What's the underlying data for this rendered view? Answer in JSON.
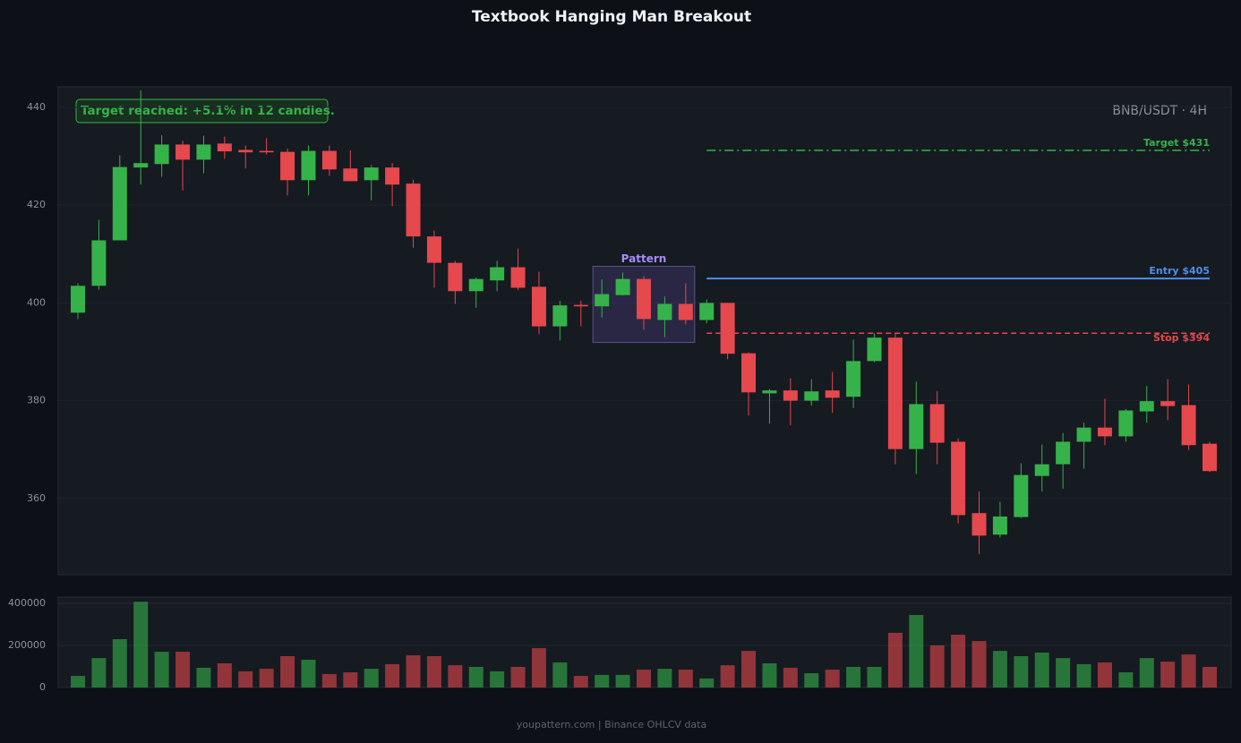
{
  "chart_data": {
    "type": "candlestick",
    "title": "Textbook Hanging Man Breakout",
    "subtitle": "BNB/USDT · 4H",
    "annotation": "Target reached: +5.1% in 12 candles.",
    "pattern_label": "Pattern",
    "source": "youpattern.com | Binance OHLCV data",
    "up_color": "#36b24a",
    "down_color": "#e5484d",
    "levels": [
      {
        "name": "Target $431",
        "value": 431.2,
        "color": "#36b24a",
        "style": "dashdot"
      },
      {
        "name": "Entry $405",
        "value": 405,
        "color": "#4f8fe6",
        "style": "solid"
      },
      {
        "name": "Stop $394",
        "value": 393.8,
        "color": "#e5484d",
        "style": "dashed"
      }
    ],
    "open": [
      398.0,
      403.5,
      412.8,
      427.7,
      428.4,
      432.4,
      429.3,
      432.6,
      431.3,
      431.1,
      430.9,
      425.1,
      431.1,
      427.5,
      425.1,
      427.7,
      424.4,
      413.6,
      408.2,
      402.4,
      404.6,
      407.3,
      403.3,
      395.2,
      399.6,
      399.3,
      401.6,
      404.9,
      396.5,
      399.8,
      396.5,
      400.0,
      389.7,
      381.5,
      382.1,
      380.0,
      382.1,
      380.8,
      388.1,
      392.9,
      370.1,
      379.3,
      371.6,
      357.0,
      352.6,
      356.2,
      364.6,
      367.0,
      371.6,
      374.5,
      372.7,
      377.8,
      379.9,
      379.1,
      371.2
    ],
    "high": [
      404.0,
      417.0,
      430.2,
      443.5,
      434.3,
      433.2,
      434.2,
      434.0,
      432.2,
      433.7,
      431.6,
      432.2,
      432.2,
      431.2,
      428.2,
      428.6,
      425.2,
      414.8,
      408.6,
      405.2,
      408.6,
      411.1,
      406.4,
      400.4,
      400.5,
      404.8,
      406.2,
      405.5,
      401.3,
      404.0,
      400.7,
      400.0,
      389.9,
      382.4,
      384.6,
      384.4,
      385.9,
      392.5,
      393.8,
      393.8,
      383.9,
      382.0,
      372.3,
      361.4,
      359.3,
      367.2,
      371.0,
      373.4,
      375.5,
      380.4,
      378.3,
      383.0,
      384.4,
      383.3,
      371.6
    ],
    "low": [
      396.7,
      402.7,
      412.8,
      424.2,
      425.8,
      423.0,
      426.5,
      429.5,
      427.5,
      430.4,
      422.0,
      422.0,
      426.0,
      424.9,
      421.0,
      419.8,
      411.3,
      403.1,
      399.8,
      399.0,
      402.4,
      402.6,
      393.6,
      392.3,
      395.2,
      397.0,
      401.5,
      394.5,
      393.0,
      395.6,
      395.8,
      388.5,
      377.0,
      375.3,
      375.0,
      379.0,
      377.5,
      378.5,
      387.9,
      367.0,
      365.0,
      367.0,
      354.9,
      348.6,
      352.0,
      356.0,
      361.4,
      362.0,
      366.1,
      370.9,
      371.6,
      375.5,
      376.0,
      369.9,
      365.4
    ],
    "close": [
      403.5,
      412.8,
      427.8,
      428.6,
      432.4,
      429.3,
      432.4,
      431.0,
      430.8,
      430.8,
      425.1,
      431.1,
      427.3,
      424.9,
      427.7,
      424.2,
      413.6,
      408.2,
      402.4,
      404.9,
      407.3,
      403.1,
      395.2,
      399.5,
      399.3,
      401.8,
      404.9,
      396.7,
      399.8,
      396.5,
      400.0,
      389.6,
      381.7,
      382.1,
      380.0,
      381.9,
      380.6,
      388.1,
      392.9,
      370.1,
      379.3,
      371.4,
      356.6,
      352.4,
      356.3,
      364.8,
      367.0,
      371.6,
      374.5,
      372.7,
      378.0,
      379.9,
      378.9,
      370.9,
      365.6
    ],
    "volume": [
      55000,
      140000,
      230000,
      408000,
      170000,
      170000,
      94000,
      115000,
      77000,
      89000,
      149000,
      132000,
      64000,
      72000,
      89000,
      111000,
      153000,
      149000,
      106000,
      98000,
      77000,
      98000,
      187000,
      119000,
      55000,
      60000,
      60000,
      85000,
      89000,
      85000,
      43000,
      106000,
      174000,
      115000,
      94000,
      68000,
      85000,
      98000,
      98000,
      260000,
      345000,
      200000,
      251000,
      221000,
      174000,
      149000,
      166000,
      140000,
      111000,
      119000,
      72000,
      140000,
      123000,
      157000,
      98000
    ],
    "ylim": [
      344.4,
      444.2
    ],
    "yticks": [
      360,
      380,
      400,
      420,
      440
    ],
    "volume_ylim": [
      0,
      430000
    ],
    "volume_yticks": [
      0,
      200000,
      400000
    ],
    "grid": true
  }
}
